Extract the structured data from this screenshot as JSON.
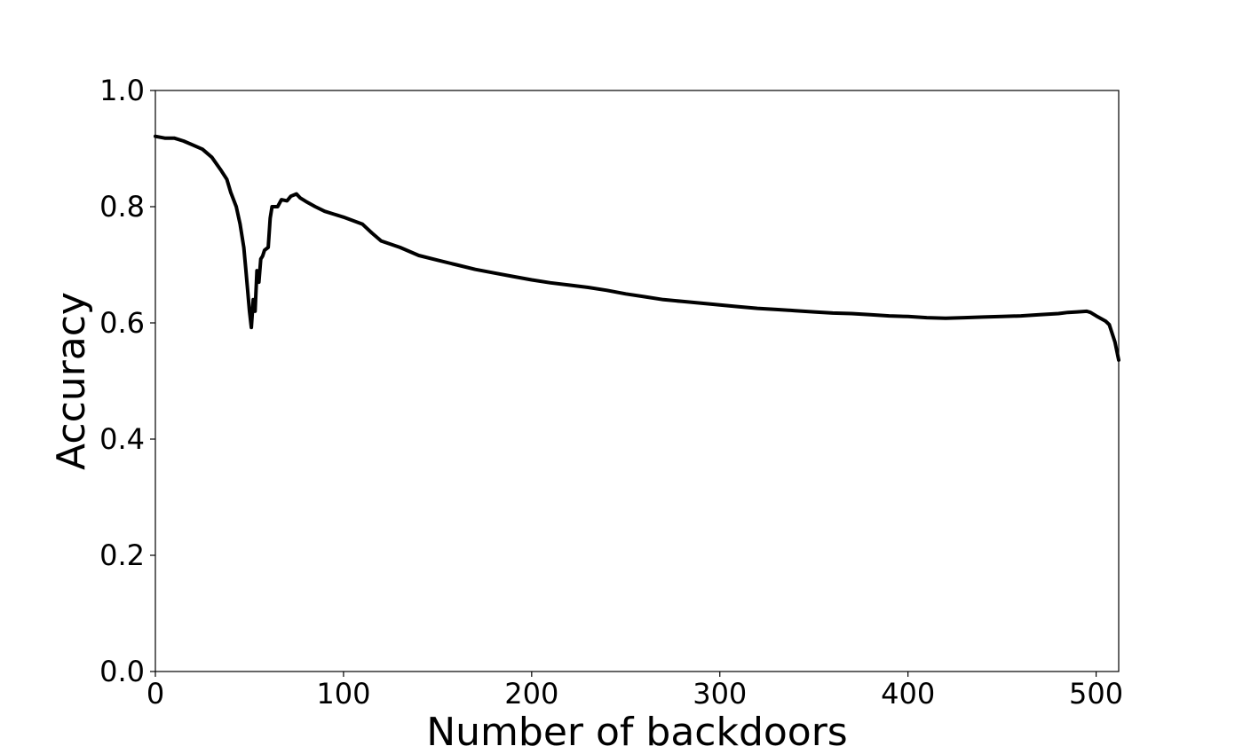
{
  "chart_data": {
    "type": "line",
    "title": "",
    "xlabel": "Number of backdoors",
    "ylabel": "Accuracy",
    "xlim": [
      0,
      512
    ],
    "ylim": [
      0.0,
      1.0
    ],
    "xticks": [
      0,
      100,
      200,
      300,
      400,
      500
    ],
    "xtick_labels": [
      "0",
      "100",
      "200",
      "300",
      "400",
      "500"
    ],
    "yticks": [
      0.0,
      0.2,
      0.4,
      0.6,
      0.8,
      1.0
    ],
    "ytick_labels": [
      "0.0",
      "0.2",
      "0.4",
      "0.6",
      "0.8",
      "1.0"
    ],
    "grid": false,
    "legend": "none",
    "series": [
      {
        "color": "#000000",
        "x": [
          0,
          5,
          10,
          15,
          20,
          25,
          30,
          35,
          38,
          40,
          43,
          45,
          47,
          48,
          50,
          51,
          52,
          53,
          54,
          55,
          56,
          57,
          58,
          60,
          61,
          62,
          65,
          67,
          70,
          72,
          75,
          77,
          80,
          85,
          90,
          95,
          100,
          110,
          115,
          120,
          130,
          140,
          150,
          160,
          170,
          180,
          190,
          200,
          210,
          220,
          230,
          240,
          250,
          260,
          270,
          280,
          290,
          300,
          310,
          320,
          330,
          340,
          350,
          360,
          370,
          380,
          390,
          400,
          410,
          420,
          430,
          440,
          450,
          460,
          470,
          480,
          485,
          490,
          495,
          497,
          500,
          505,
          507,
          510,
          512
        ],
        "y": [
          0.921,
          0.918,
          0.918,
          0.913,
          0.906,
          0.899,
          0.885,
          0.862,
          0.847,
          0.825,
          0.8,
          0.77,
          0.73,
          0.695,
          0.62,
          0.592,
          0.64,
          0.62,
          0.69,
          0.67,
          0.71,
          0.715,
          0.725,
          0.73,
          0.78,
          0.8,
          0.8,
          0.812,
          0.81,
          0.818,
          0.822,
          0.815,
          0.809,
          0.8,
          0.792,
          0.787,
          0.782,
          0.77,
          0.755,
          0.741,
          0.73,
          0.716,
          0.708,
          0.7,
          0.692,
          0.686,
          0.68,
          0.674,
          0.669,
          0.665,
          0.661,
          0.656,
          0.65,
          0.645,
          0.64,
          0.637,
          0.634,
          0.631,
          0.628,
          0.625,
          0.623,
          0.621,
          0.619,
          0.617,
          0.616,
          0.614,
          0.612,
          0.611,
          0.609,
          0.608,
          0.609,
          0.61,
          0.611,
          0.612,
          0.614,
          0.616,
          0.618,
          0.619,
          0.62,
          0.618,
          0.612,
          0.603,
          0.597,
          0.567,
          0.536
        ]
      }
    ]
  }
}
